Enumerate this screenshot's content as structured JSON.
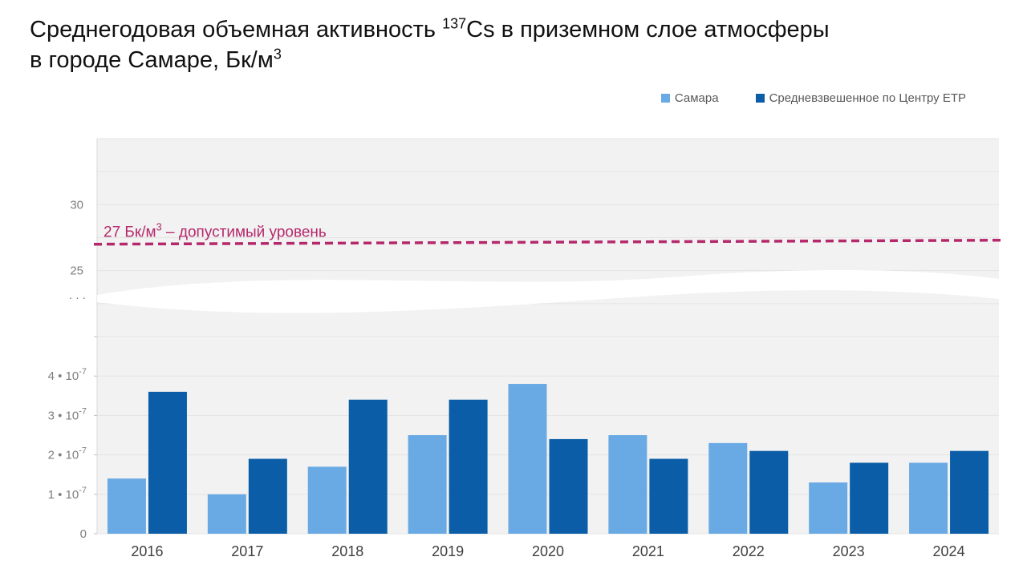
{
  "title": {
    "line1_pre": "Среднегодовая объемная активность ",
    "isotope_mass": "137",
    "line1_post": "Cs в приземном слое атмосферы",
    "line2_pre": "в городе Самаре, Бк/м",
    "line2_sup": "3"
  },
  "legend": [
    {
      "label": "Самара",
      "color": "#6aaae4"
    },
    {
      "label": "Средневзвешенное по Центру ЕТР",
      "color": "#0a5da6"
    }
  ],
  "chart_data": {
    "type": "bar",
    "title": "Среднегодовая объемная активность 137Cs в приземном слое атмосферы в городе Самаре, Бк/м3",
    "categories": [
      "2016",
      "2017",
      "2018",
      "2019",
      "2020",
      "2021",
      "2022",
      "2023",
      "2024"
    ],
    "series": [
      {
        "name": "Самара",
        "color": "#6aaae4",
        "values": [
          1.4e-07,
          1e-07,
          1.7e-07,
          2.5e-07,
          3.8e-07,
          2.5e-07,
          2.3e-07,
          1.3e-07,
          1.8e-07
        ]
      },
      {
        "name": "Средневзвешенное по Центру ЕТР",
        "color": "#0a5da6",
        "values": [
          3.6e-07,
          1.9e-07,
          3.4e-07,
          3.4e-07,
          2.4e-07,
          1.9e-07,
          2.1e-07,
          1.8e-07,
          2.1e-07
        ]
      }
    ],
    "lower_axis": {
      "ylim": [
        0,
        5e-07
      ],
      "ticks": [
        {
          "value": 0,
          "base": "0",
          "exp": ""
        },
        {
          "value": 1e-07,
          "base": "1 • 10",
          "exp": "-7"
        },
        {
          "value": 2e-07,
          "base": "2 • 10",
          "exp": "-7"
        },
        {
          "value": 3e-07,
          "base": "3 • 10",
          "exp": "-7"
        },
        {
          "value": 4e-07,
          "base": "4 • 10",
          "exp": "-7"
        }
      ]
    },
    "upper_axis": {
      "ylim": [
        20,
        35
      ],
      "ticks": [
        {
          "value": 25,
          "label": "25"
        },
        {
          "value": 30,
          "label": "30"
        }
      ]
    },
    "axis_break_label": ". . .",
    "reference_line": {
      "value": 27,
      "label_pre": "27 Бк/м",
      "label_sup": "3",
      "label_post": " – допустимый уровень",
      "color": "#b5286b"
    },
    "xlabel": "",
    "ylabel": "",
    "grid": true,
    "legend_position": "top-right"
  }
}
